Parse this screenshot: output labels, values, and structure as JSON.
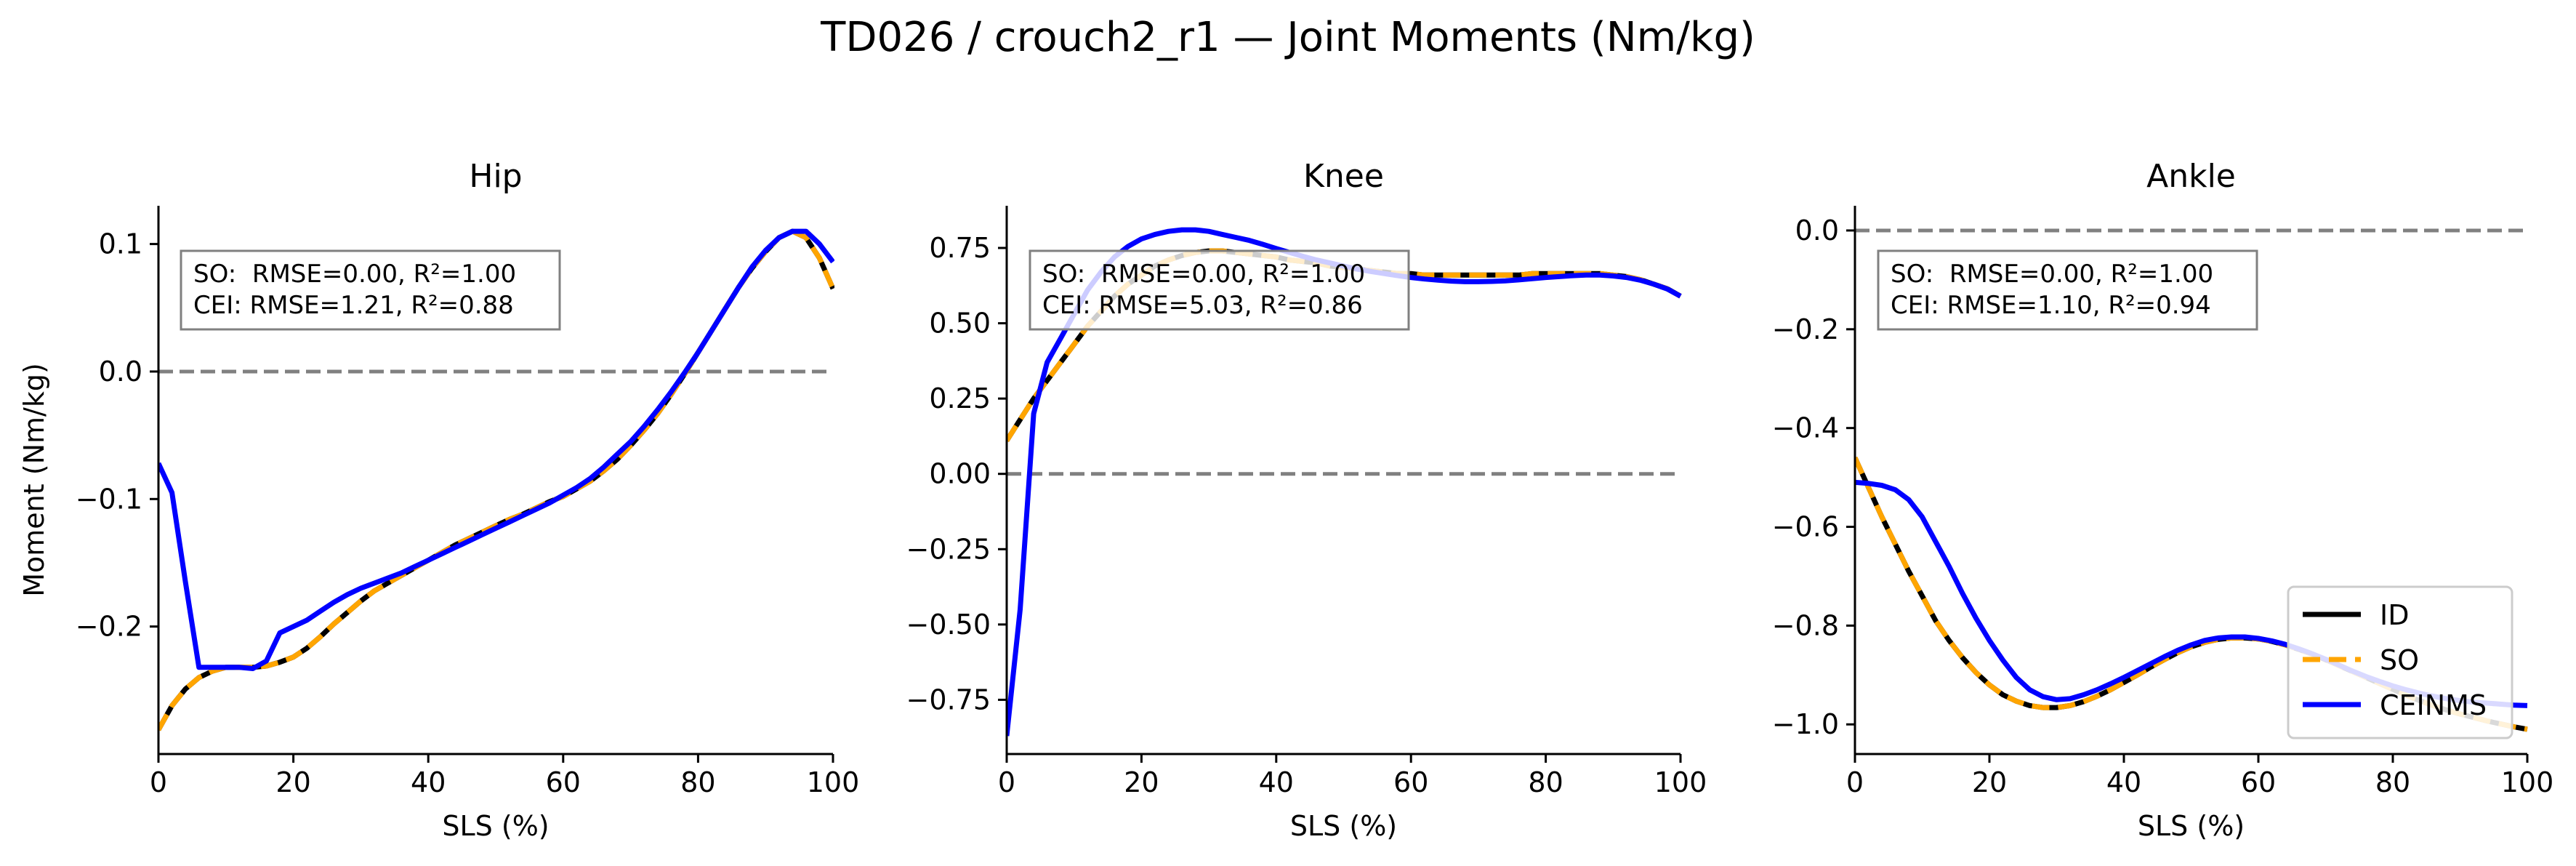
{
  "figure": {
    "title": "TD026 / crouch2_r1 — Joint Moments (Nm/kg)"
  },
  "colors": {
    "ID": "#000000",
    "SO": "#ffa500",
    "CEINMS": "#0000ff",
    "zero_line": "#808080",
    "box_edge": "#808080"
  },
  "legend": {
    "location": "lower-right of Ankle panel",
    "entries": [
      "ID",
      "SO",
      "CEINMS"
    ]
  },
  "chart_data": [
    {
      "type": "line",
      "title": "Hip",
      "xlabel": "SLS (%)",
      "ylabel": "Moment (Nm/kg)",
      "xlim": [
        0,
        100
      ],
      "ylim": [
        -0.3,
        0.13
      ],
      "xticks": [
        "0",
        "20",
        "40",
        "60",
        "80",
        "100"
      ],
      "yticks": [
        {
          "value": 0.1,
          "label": "0.1"
        },
        {
          "value": 0.0,
          "label": "0.0"
        },
        {
          "value": -0.1,
          "label": "−0.1"
        },
        {
          "value": -0.2,
          "label": "−0.2"
        }
      ],
      "zero_line": true,
      "stats": [
        "SO:  RMSE=0.00, R²=1.00",
        "CEI: RMSE=1.21, R²=0.88"
      ],
      "x": [
        0,
        2,
        4,
        6,
        8,
        10,
        12,
        14,
        16,
        18,
        20,
        22,
        24,
        26,
        28,
        30,
        32,
        34,
        36,
        38,
        40,
        42,
        44,
        46,
        48,
        50,
        52,
        54,
        56,
        58,
        60,
        62,
        64,
        66,
        68,
        70,
        72,
        74,
        76,
        78,
        80,
        82,
        84,
        86,
        88,
        90,
        92,
        94,
        96,
        98,
        100
      ],
      "series": [
        {
          "name": "ID",
          "values": [
            -0.281,
            -0.262,
            -0.249,
            -0.24,
            -0.235,
            -0.232,
            -0.232,
            -0.232,
            -0.231,
            -0.228,
            -0.224,
            -0.217,
            -0.208,
            -0.198,
            -0.189,
            -0.18,
            -0.172,
            -0.166,
            -0.16,
            -0.154,
            -0.148,
            -0.142,
            -0.136,
            -0.131,
            -0.126,
            -0.121,
            -0.116,
            -0.112,
            -0.107,
            -0.102,
            -0.098,
            -0.092,
            -0.086,
            -0.078,
            -0.069,
            -0.058,
            -0.046,
            -0.033,
            -0.018,
            -0.002,
            0.015,
            0.032,
            0.049,
            0.066,
            0.081,
            0.094,
            0.105,
            0.11,
            0.105,
            0.089,
            0.065
          ]
        },
        {
          "name": "SO",
          "values": [
            -0.281,
            -0.262,
            -0.249,
            -0.24,
            -0.235,
            -0.232,
            -0.232,
            -0.232,
            -0.231,
            -0.228,
            -0.224,
            -0.217,
            -0.208,
            -0.198,
            -0.189,
            -0.18,
            -0.172,
            -0.166,
            -0.16,
            -0.154,
            -0.148,
            -0.142,
            -0.136,
            -0.131,
            -0.126,
            -0.121,
            -0.116,
            -0.112,
            -0.107,
            -0.102,
            -0.098,
            -0.092,
            -0.086,
            -0.078,
            -0.069,
            -0.058,
            -0.046,
            -0.033,
            -0.018,
            -0.002,
            0.015,
            0.032,
            0.049,
            0.066,
            0.081,
            0.094,
            0.105,
            0.11,
            0.105,
            0.089,
            0.065
          ]
        },
        {
          "name": "CEINMS",
          "values": [
            -0.072,
            -0.095,
            -0.165,
            -0.232,
            -0.232,
            -0.232,
            -0.232,
            -0.233,
            -0.227,
            -0.205,
            -0.2,
            -0.195,
            -0.188,
            -0.181,
            -0.175,
            -0.17,
            -0.166,
            -0.162,
            -0.158,
            -0.153,
            -0.148,
            -0.143,
            -0.138,
            -0.133,
            -0.128,
            -0.123,
            -0.118,
            -0.113,
            -0.108,
            -0.103,
            -0.097,
            -0.091,
            -0.084,
            -0.075,
            -0.065,
            -0.055,
            -0.043,
            -0.03,
            -0.016,
            -0.001,
            0.015,
            0.032,
            0.049,
            0.066,
            0.082,
            0.095,
            0.105,
            0.11,
            0.11,
            0.1,
            0.086
          ]
        }
      ]
    },
    {
      "type": "line",
      "title": "Knee",
      "xlabel": "SLS (%)",
      "ylabel": "",
      "xlim": [
        0,
        100
      ],
      "ylim": [
        -0.93,
        0.89
      ],
      "xticks": [
        "0",
        "20",
        "40",
        "60",
        "80",
        "100"
      ],
      "yticks": [
        {
          "value": 0.75,
          "label": "0.75"
        },
        {
          "value": 0.5,
          "label": "0.50"
        },
        {
          "value": 0.25,
          "label": "0.25"
        },
        {
          "value": 0.0,
          "label": "0.00"
        },
        {
          "value": -0.25,
          "label": "−0.25"
        },
        {
          "value": -0.5,
          "label": "−0.50"
        },
        {
          "value": -0.75,
          "label": "−0.75"
        }
      ],
      "zero_line": true,
      "stats": [
        "SO:  RMSE=0.00, R²=1.00",
        "CEI: RMSE=5.03, R²=0.86"
      ],
      "x": [
        0,
        2,
        4,
        6,
        8,
        10,
        12,
        14,
        16,
        18,
        20,
        22,
        24,
        26,
        28,
        30,
        32,
        34,
        36,
        38,
        40,
        42,
        44,
        46,
        48,
        50,
        52,
        54,
        56,
        58,
        60,
        62,
        64,
        66,
        68,
        70,
        72,
        74,
        76,
        78,
        80,
        82,
        84,
        86,
        88,
        90,
        92,
        94,
        96,
        98,
        100
      ],
      "series": [
        {
          "name": "ID",
          "values": [
            0.11,
            0.18,
            0.25,
            0.31,
            0.37,
            0.43,
            0.49,
            0.54,
            0.59,
            0.63,
            0.66,
            0.69,
            0.71,
            0.725,
            0.735,
            0.74,
            0.74,
            0.735,
            0.73,
            0.725,
            0.72,
            0.71,
            0.705,
            0.7,
            0.69,
            0.685,
            0.68,
            0.675,
            0.67,
            0.665,
            0.665,
            0.66,
            0.66,
            0.66,
            0.66,
            0.66,
            0.66,
            0.66,
            0.66,
            0.665,
            0.665,
            0.665,
            0.665,
            0.665,
            0.665,
            0.66,
            0.655,
            0.645,
            0.63,
            0.615,
            0.59
          ]
        },
        {
          "name": "SO",
          "values": [
            0.11,
            0.18,
            0.25,
            0.31,
            0.37,
            0.43,
            0.49,
            0.54,
            0.59,
            0.63,
            0.66,
            0.69,
            0.71,
            0.725,
            0.735,
            0.74,
            0.74,
            0.735,
            0.73,
            0.725,
            0.72,
            0.71,
            0.705,
            0.7,
            0.69,
            0.685,
            0.68,
            0.675,
            0.67,
            0.665,
            0.665,
            0.66,
            0.66,
            0.66,
            0.66,
            0.66,
            0.66,
            0.66,
            0.66,
            0.665,
            0.665,
            0.665,
            0.665,
            0.665,
            0.665,
            0.66,
            0.655,
            0.645,
            0.63,
            0.615,
            0.59
          ]
        },
        {
          "name": "CEINMS",
          "values": [
            -0.87,
            -0.45,
            0.2,
            0.37,
            0.45,
            0.53,
            0.61,
            0.67,
            0.72,
            0.755,
            0.78,
            0.795,
            0.805,
            0.81,
            0.81,
            0.805,
            0.795,
            0.785,
            0.775,
            0.762,
            0.748,
            0.735,
            0.722,
            0.71,
            0.7,
            0.69,
            0.68,
            0.672,
            0.665,
            0.658,
            0.652,
            0.647,
            0.643,
            0.64,
            0.638,
            0.638,
            0.639,
            0.641,
            0.644,
            0.648,
            0.652,
            0.655,
            0.658,
            0.66,
            0.66,
            0.657,
            0.652,
            0.643,
            0.63,
            0.614,
            0.59
          ]
        }
      ]
    },
    {
      "type": "line",
      "title": "Ankle",
      "xlabel": "SLS (%)",
      "ylabel": "",
      "xlim": [
        0,
        100
      ],
      "ylim": [
        -1.06,
        0.05
      ],
      "xticks": [
        "0",
        "20",
        "40",
        "60",
        "80",
        "100"
      ],
      "yticks": [
        {
          "value": 0.0,
          "label": "0.0"
        },
        {
          "value": -0.2,
          "label": "−0.2"
        },
        {
          "value": -0.4,
          "label": "−0.4"
        },
        {
          "value": -0.6,
          "label": "−0.6"
        },
        {
          "value": -0.8,
          "label": "−0.8"
        },
        {
          "value": -1.0,
          "label": "−1.0"
        }
      ],
      "zero_line": true,
      "stats": [
        "SO:  RMSE=0.00, R²=1.00",
        "CEI: RMSE=1.10, R²=0.94"
      ],
      "x": [
        0,
        2,
        4,
        6,
        8,
        10,
        12,
        14,
        16,
        18,
        20,
        22,
        24,
        26,
        28,
        30,
        32,
        34,
        36,
        38,
        40,
        42,
        44,
        46,
        48,
        50,
        52,
        54,
        56,
        58,
        60,
        62,
        64,
        66,
        68,
        70,
        72,
        74,
        76,
        78,
        80,
        82,
        84,
        86,
        88,
        90,
        92,
        94,
        96,
        98,
        100
      ],
      "series": [
        {
          "name": "ID",
          "values": [
            -0.46,
            -0.52,
            -0.58,
            -0.635,
            -0.69,
            -0.74,
            -0.79,
            -0.83,
            -0.865,
            -0.895,
            -0.92,
            -0.94,
            -0.953,
            -0.962,
            -0.966,
            -0.966,
            -0.962,
            -0.954,
            -0.943,
            -0.93,
            -0.915,
            -0.9,
            -0.884,
            -0.869,
            -0.855,
            -0.843,
            -0.834,
            -0.828,
            -0.825,
            -0.825,
            -0.827,
            -0.832,
            -0.839,
            -0.848,
            -0.858,
            -0.869,
            -0.881,
            -0.893,
            -0.905,
            -0.917,
            -0.929,
            -0.941,
            -0.952,
            -0.962,
            -0.971,
            -0.979,
            -0.986,
            -0.993,
            -0.999,
            -1.005,
            -1.01
          ]
        },
        {
          "name": "SO",
          "values": [
            -0.46,
            -0.52,
            -0.58,
            -0.635,
            -0.69,
            -0.74,
            -0.79,
            -0.83,
            -0.865,
            -0.895,
            -0.92,
            -0.94,
            -0.953,
            -0.962,
            -0.966,
            -0.966,
            -0.962,
            -0.954,
            -0.943,
            -0.93,
            -0.915,
            -0.9,
            -0.884,
            -0.869,
            -0.855,
            -0.843,
            -0.834,
            -0.828,
            -0.825,
            -0.825,
            -0.827,
            -0.832,
            -0.839,
            -0.848,
            -0.858,
            -0.869,
            -0.881,
            -0.893,
            -0.905,
            -0.917,
            -0.929,
            -0.941,
            -0.952,
            -0.962,
            -0.971,
            -0.979,
            -0.986,
            -0.993,
            -0.999,
            -1.005,
            -1.01
          ]
        },
        {
          "name": "CEINMS",
          "values": [
            -0.51,
            -0.512,
            -0.516,
            -0.525,
            -0.545,
            -0.58,
            -0.63,
            -0.68,
            -0.735,
            -0.785,
            -0.83,
            -0.87,
            -0.905,
            -0.93,
            -0.944,
            -0.95,
            -0.948,
            -0.94,
            -0.93,
            -0.918,
            -0.905,
            -0.891,
            -0.877,
            -0.863,
            -0.85,
            -0.839,
            -0.83,
            -0.825,
            -0.823,
            -0.823,
            -0.826,
            -0.831,
            -0.838,
            -0.847,
            -0.857,
            -0.868,
            -0.88,
            -0.892,
            -0.903,
            -0.913,
            -0.922,
            -0.93,
            -0.937,
            -0.943,
            -0.948,
            -0.952,
            -0.955,
            -0.957,
            -0.959,
            -0.961,
            -0.962
          ]
        }
      ]
    }
  ]
}
